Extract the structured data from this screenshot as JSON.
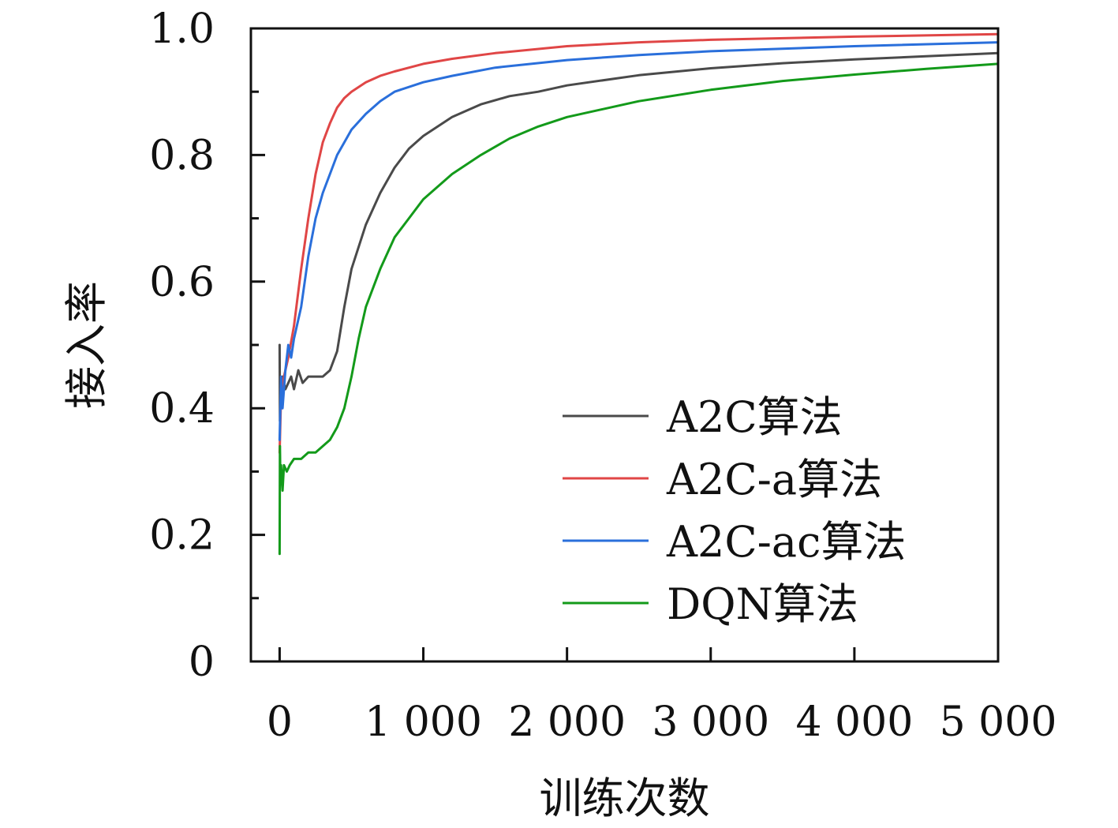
{
  "chart_data": {
    "type": "line",
    "title": "",
    "xlabel": "训练次数",
    "ylabel": "接入率",
    "xlim": [
      -200,
      5000
    ],
    "ylim": [
      0,
      1.0
    ],
    "x_ticks": [
      {
        "value": 0,
        "label": "0"
      },
      {
        "value": 1000,
        "label": "1 000"
      },
      {
        "value": 2000,
        "label": "2 000"
      },
      {
        "value": 3000,
        "label": "3 000"
      },
      {
        "value": 4000,
        "label": "4 000"
      },
      {
        "value": 5000,
        "label": "5 000"
      }
    ],
    "y_ticks": [
      {
        "value": 0,
        "label": "0"
      },
      {
        "value": 0.2,
        "label": "0.2"
      },
      {
        "value": 0.4,
        "label": "0.4"
      },
      {
        "value": 0.6,
        "label": "0.6"
      },
      {
        "value": 0.8,
        "label": "0.8"
      },
      {
        "value": 1.0,
        "label": "1.0"
      }
    ],
    "y_minor_ticks": [
      0.1,
      0.3,
      0.5,
      0.7,
      0.9
    ],
    "grid": false,
    "legend_position": "bottom-right",
    "series": [
      {
        "name": "A2C算法",
        "color": "#4a4a4a",
        "x": [
          0,
          2,
          5,
          10,
          20,
          40,
          60,
          80,
          100,
          130,
          160,
          200,
          250,
          300,
          350,
          400,
          450,
          500,
          600,
          700,
          800,
          900,
          1000,
          1200,
          1400,
          1600,
          1800,
          2000,
          2500,
          3000,
          3500,
          4000,
          4500,
          5000
        ],
        "y": [
          0.5,
          0.38,
          0.44,
          0.42,
          0.45,
          0.43,
          0.44,
          0.45,
          0.43,
          0.46,
          0.44,
          0.45,
          0.45,
          0.45,
          0.46,
          0.49,
          0.56,
          0.62,
          0.69,
          0.74,
          0.78,
          0.81,
          0.83,
          0.86,
          0.88,
          0.893,
          0.9,
          0.91,
          0.926,
          0.937,
          0.945,
          0.951,
          0.956,
          0.961
        ]
      },
      {
        "name": "A2C-a算法",
        "color": "#e04646",
        "x": [
          0,
          10,
          30,
          60,
          100,
          150,
          200,
          250,
          300,
          350,
          400,
          450,
          500,
          600,
          700,
          800,
          1000,
          1200,
          1500,
          2000,
          2500,
          3000,
          4000,
          5000
        ],
        "y": [
          0.33,
          0.42,
          0.45,
          0.48,
          0.53,
          0.62,
          0.7,
          0.77,
          0.82,
          0.85,
          0.875,
          0.89,
          0.9,
          0.915,
          0.925,
          0.932,
          0.944,
          0.952,
          0.961,
          0.972,
          0.978,
          0.982,
          0.987,
          0.991
        ]
      },
      {
        "name": "A2C-ac算法",
        "color": "#2a6fdb",
        "x": [
          0,
          10,
          20,
          40,
          60,
          80,
          100,
          150,
          200,
          250,
          300,
          350,
          400,
          450,
          500,
          600,
          700,
          800,
          1000,
          1200,
          1500,
          2000,
          2500,
          3000,
          4000,
          5000
        ],
        "y": [
          0.35,
          0.45,
          0.4,
          0.46,
          0.5,
          0.48,
          0.51,
          0.56,
          0.64,
          0.7,
          0.74,
          0.77,
          0.8,
          0.82,
          0.84,
          0.865,
          0.885,
          0.9,
          0.915,
          0.925,
          0.938,
          0.95,
          0.958,
          0.964,
          0.972,
          0.978
        ]
      },
      {
        "name": "DQN算法",
        "color": "#139a1a",
        "x": [
          0,
          2,
          5,
          10,
          20,
          30,
          50,
          70,
          100,
          150,
          200,
          250,
          300,
          350,
          400,
          450,
          500,
          550,
          600,
          700,
          800,
          900,
          1000,
          1200,
          1400,
          1600,
          1800,
          2000,
          2500,
          3000,
          3500,
          4000,
          4500,
          5000
        ],
        "y": [
          0.17,
          0.34,
          0.29,
          0.31,
          0.27,
          0.31,
          0.3,
          0.31,
          0.32,
          0.32,
          0.33,
          0.33,
          0.34,
          0.35,
          0.37,
          0.4,
          0.45,
          0.51,
          0.56,
          0.62,
          0.67,
          0.7,
          0.73,
          0.77,
          0.8,
          0.826,
          0.845,
          0.86,
          0.885,
          0.903,
          0.917,
          0.927,
          0.936,
          0.944
        ]
      }
    ]
  }
}
